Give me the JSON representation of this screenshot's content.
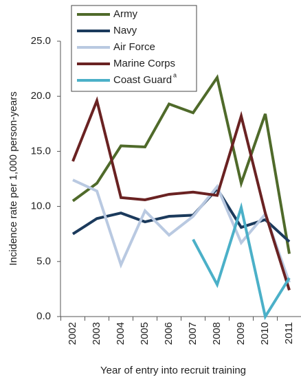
{
  "chart_data": {
    "type": "line",
    "x_label": "Year of entry into recruit training",
    "y_label": "Incidence rate per 1,000 person-years",
    "categories": [
      "2002",
      "2003",
      "2004",
      "2005",
      "2006",
      "2007",
      "2008",
      "2009",
      "2010",
      "2011"
    ],
    "ylim": [
      0,
      25
    ],
    "yticks": [
      {
        "value": 0,
        "label": "0.0"
      },
      {
        "value": 5,
        "label": "5.0"
      },
      {
        "value": 10,
        "label": "10.0"
      },
      {
        "value": 15,
        "label": "15.0"
      },
      {
        "value": 20,
        "label": "20.0"
      },
      {
        "value": 25,
        "label": "25.0"
      }
    ],
    "legend": "top-left",
    "series": [
      {
        "name": "Army",
        "color": "#4f6a2a",
        "values": [
          10.5,
          12.1,
          15.5,
          15.4,
          19.3,
          18.5,
          21.7,
          12.1,
          18.4,
          5.7
        ]
      },
      {
        "name": "Navy",
        "color": "#1b3a5c",
        "values": [
          7.5,
          8.9,
          9.4,
          8.6,
          9.1,
          9.2,
          11.6,
          8.1,
          8.8,
          6.8
        ]
      },
      {
        "name": "Air Force",
        "color": "#b9c9e1",
        "values": [
          12.4,
          11.4,
          4.7,
          9.6,
          7.4,
          9.1,
          11.8,
          6.7,
          9.3,
          3.1
        ]
      },
      {
        "name": "Marine Corps",
        "color": "#6a2222",
        "values": [
          14.1,
          19.6,
          10.8,
          10.6,
          11.1,
          11.3,
          11.0,
          18.2,
          9.4,
          2.4
        ]
      },
      {
        "name": "Coast Guard",
        "note": "a",
        "color": "#4bb0c8",
        "values": [
          null,
          null,
          null,
          null,
          null,
          7.0,
          2.9,
          9.9,
          0,
          3.5
        ]
      }
    ]
  }
}
